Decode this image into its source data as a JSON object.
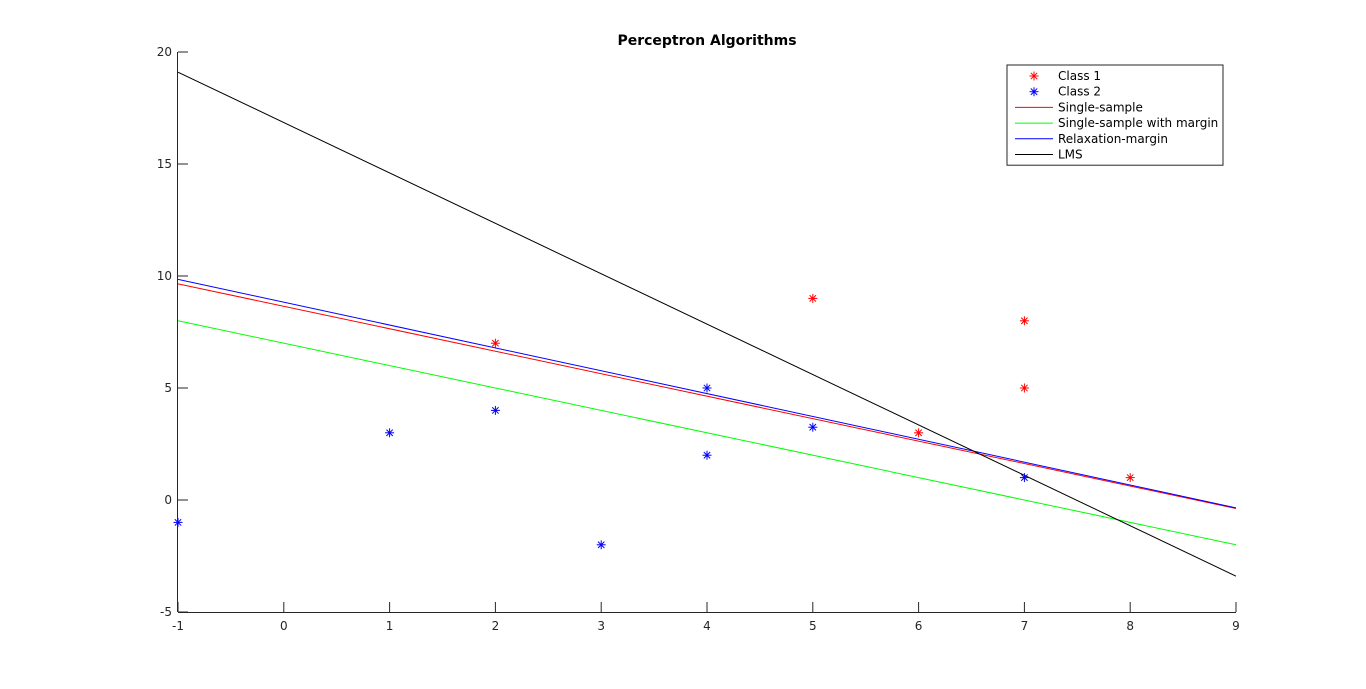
{
  "chart_data": {
    "type": "scatter",
    "title": "Perceptron Algorithms",
    "xlabel": "",
    "ylabel": "",
    "xlim": [
      -1,
      9
    ],
    "ylim": [
      -5,
      20
    ],
    "x_ticks": [
      "-1",
      "0",
      "1",
      "2",
      "3",
      "4",
      "5",
      "6",
      "7",
      "8",
      "9"
    ],
    "y_ticks": [
      "-5",
      "0",
      "5",
      "10",
      "15",
      "20"
    ],
    "grid": false,
    "legend_position": "top-right",
    "points": [
      {
        "name": "Class 1",
        "color": "#ff0000",
        "marker": "asterisk",
        "x": [
          2,
          5,
          6,
          7,
          7,
          8
        ],
        "y": [
          7,
          9,
          3,
          8,
          5,
          1
        ]
      },
      {
        "name": "Class 2",
        "color": "#0000ff",
        "marker": "asterisk",
        "x": [
          -1,
          1,
          2,
          3,
          4,
          4,
          5,
          7
        ],
        "y": [
          -1,
          3,
          4,
          -2,
          5,
          2,
          3.25,
          1
        ]
      }
    ],
    "lines": [
      {
        "name": "Single-sample",
        "color": "#ff0000",
        "x": [
          -1,
          9
        ],
        "y": [
          9.65,
          -0.38
        ]
      },
      {
        "name": "Single-sample with margin",
        "color": "#00ff00",
        "x": [
          -1,
          9
        ],
        "y": [
          8,
          -2
        ]
      },
      {
        "name": "Relaxation-margin",
        "color": "#0000ff",
        "x": [
          -1,
          9
        ],
        "y": [
          9.85,
          -0.35
        ]
      },
      {
        "name": "LMS",
        "color": "#000000",
        "x": [
          -1,
          9
        ],
        "y": [
          19.1,
          -3.4
        ]
      }
    ],
    "legend": [
      "Class 1",
      "Class 2",
      "Single-sample",
      "Single-sample with margin",
      "Relaxation-margin",
      "LMS"
    ]
  }
}
